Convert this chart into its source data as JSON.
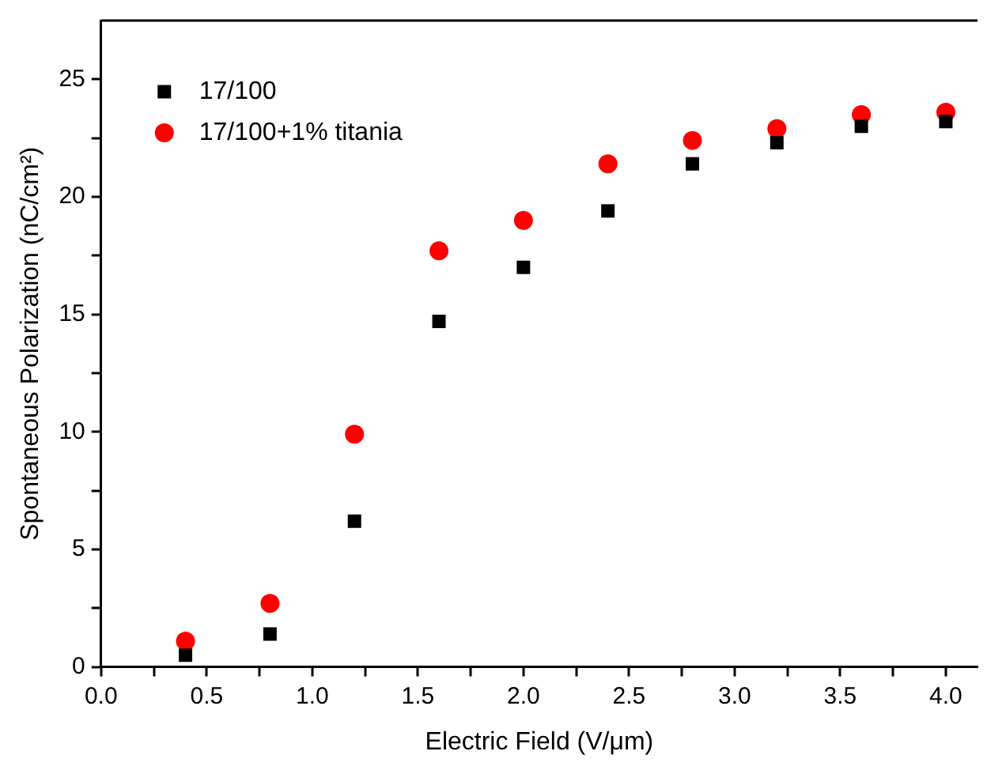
{
  "chart_data": {
    "type": "scatter",
    "xlabel": "Electric Field (V/μm)",
    "ylabel": "Spontaneous Polarization (nC/cm²)",
    "x": [
      0.4,
      0.8,
      1.2,
      1.6,
      2.0,
      2.4,
      2.8,
      3.2,
      3.6,
      4.0
    ],
    "series": [
      {
        "name": "17/100",
        "color": "#000000",
        "marker": "square",
        "values": [
          0.5,
          1.4,
          6.2,
          14.7,
          17.0,
          19.4,
          21.4,
          22.3,
          23.0,
          23.2
        ]
      },
      {
        "name": "17/100+1% titania",
        "color": "#ff0000",
        "marker": "circle",
        "values": [
          1.1,
          2.7,
          9.9,
          17.7,
          19.0,
          21.4,
          22.4,
          22.9,
          23.5,
          23.6
        ]
      }
    ],
    "xlim": [
      0,
      4.15
    ],
    "ylim": [
      0,
      27.5
    ],
    "xticks": [
      {
        "value": 0,
        "label": "0.0"
      },
      {
        "value": 0.25,
        "label": null
      },
      {
        "value": 0.5,
        "label": "0.5"
      },
      {
        "value": 0.75,
        "label": null
      },
      {
        "value": 1,
        "label": "1.0"
      },
      {
        "value": 1.25,
        "label": null
      },
      {
        "value": 1.5,
        "label": "1.5"
      },
      {
        "value": 1.75,
        "label": null
      },
      {
        "value": 2,
        "label": "2.0"
      },
      {
        "value": 2.25,
        "label": null
      },
      {
        "value": 2.5,
        "label": "2.5"
      },
      {
        "value": 2.75,
        "label": null
      },
      {
        "value": 3,
        "label": "3.0"
      },
      {
        "value": 3.25,
        "label": null
      },
      {
        "value": 3.5,
        "label": "3.5"
      },
      {
        "value": 3.75,
        "label": null
      },
      {
        "value": 4,
        "label": "4.0"
      }
    ],
    "yticks": [
      0,
      {
        "value": 2.5,
        "label": null
      },
      5,
      {
        "value": 7.5,
        "label": null
      },
      10,
      {
        "value": 12.5,
        "label": null
      },
      15,
      {
        "value": 17.5,
        "label": null
      },
      20,
      {
        "value": 22.5,
        "label": null
      },
      25
    ],
    "grid": false,
    "legend": "top left"
  }
}
